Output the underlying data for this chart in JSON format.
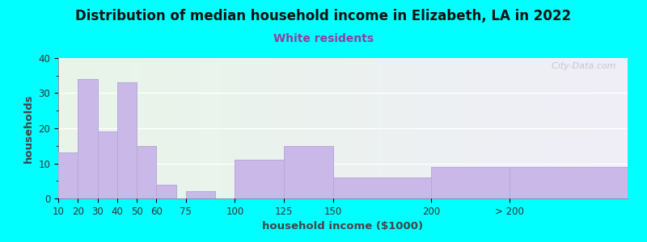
{
  "title": "Distribution of median household income in Elizabeth, LA in 2022",
  "subtitle": "White residents",
  "xlabel": "household income ($1000)",
  "ylabel": "households",
  "background_color": "#00FFFF",
  "plot_bg_color_left": "#e8f5e8",
  "plot_bg_color_right": "#f0eef8",
  "bar_color": "#c9b8e8",
  "bar_edge_color": "#b8a8d8",
  "values": [
    13,
    34,
    19,
    33,
    15,
    4,
    2,
    11,
    15,
    6,
    9,
    9
  ],
  "positions": [
    10,
    20,
    30,
    40,
    50,
    60,
    75,
    100,
    125,
    150,
    200,
    240
  ],
  "widths": [
    10,
    10,
    10,
    10,
    10,
    10,
    15,
    25,
    25,
    50,
    50,
    60
  ],
  "ylim": [
    0,
    40
  ],
  "xlim": [
    10,
    300
  ],
  "yticks": [
    0,
    10,
    20,
    30,
    40
  ],
  "xtick_pos": [
    10,
    20,
    30,
    40,
    50,
    60,
    75,
    100,
    125,
    150,
    200,
    240
  ],
  "xtick_labels": [
    "10",
    "20",
    "30",
    "40",
    "50",
    "60",
    "75",
    "100",
    "125",
    "150",
    "200",
    "> 200"
  ],
  "title_fontsize": 12,
  "subtitle_fontsize": 10,
  "axis_label_fontsize": 9.5,
  "tick_fontsize": 8.5,
  "title_color": "#111111",
  "subtitle_color": "#9040a0",
  "axis_label_color": "#444444",
  "watermark": "  City-Data.com"
}
